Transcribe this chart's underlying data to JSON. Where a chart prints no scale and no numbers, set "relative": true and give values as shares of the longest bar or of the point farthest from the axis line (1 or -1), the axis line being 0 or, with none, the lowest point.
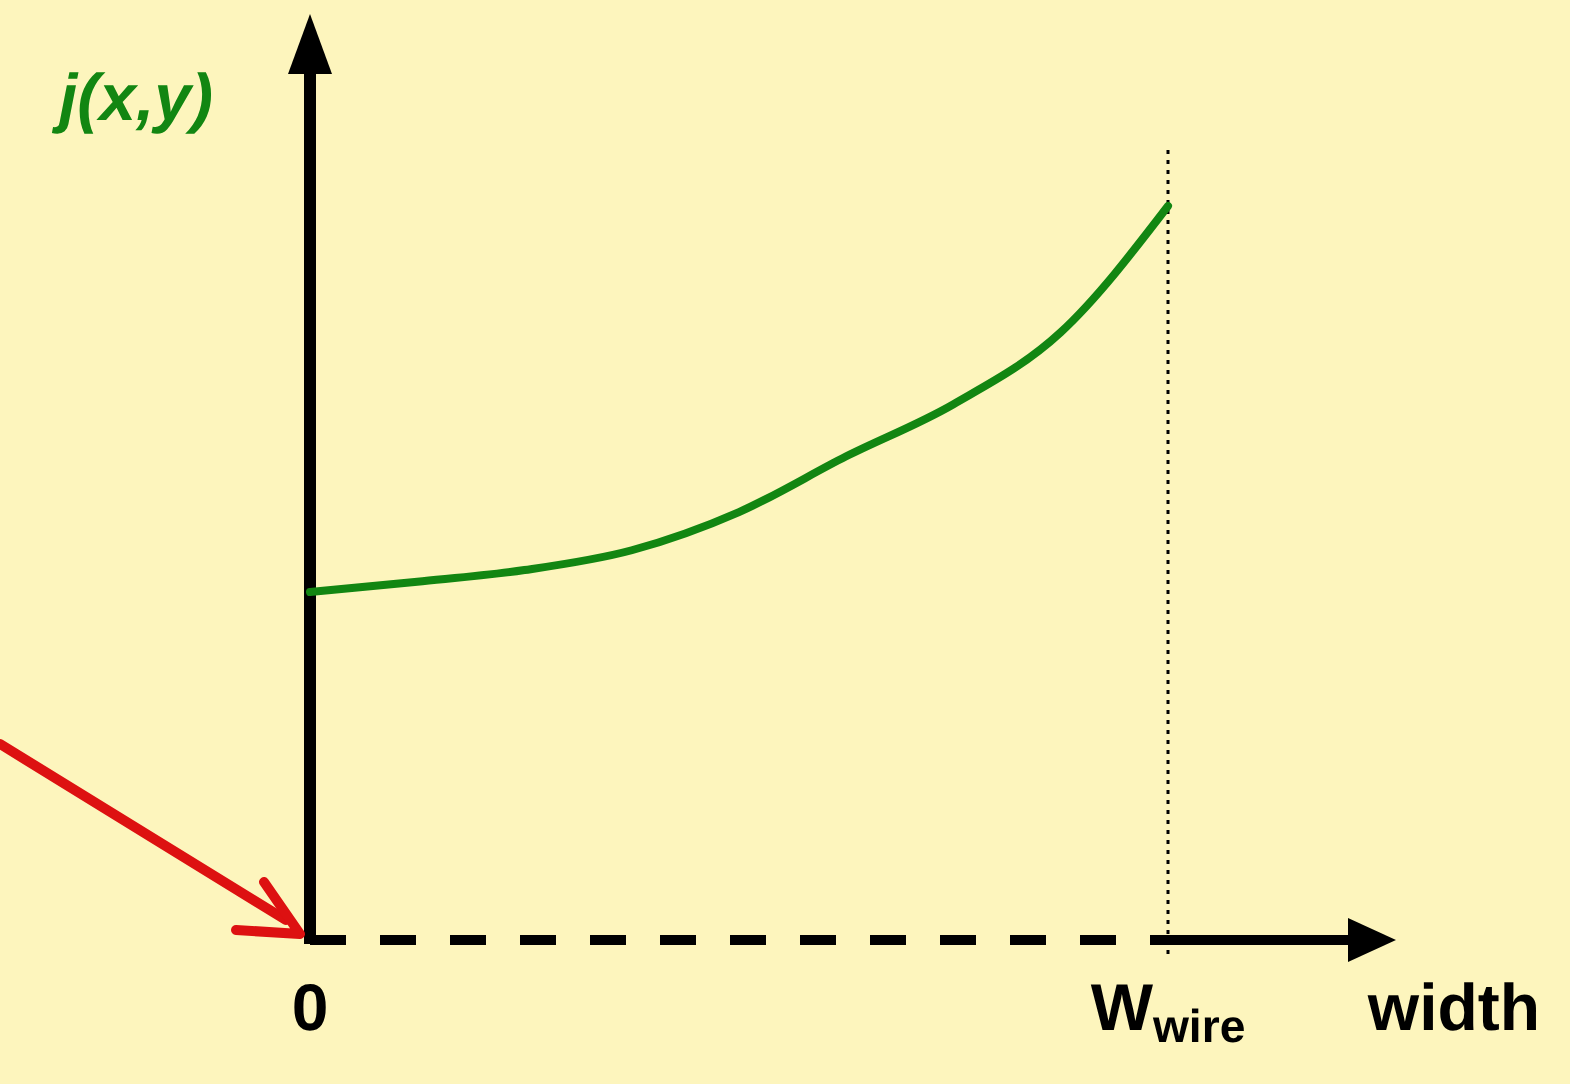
{
  "chart_data": {
    "type": "line",
    "relative": true,
    "xlabel": "width",
    "ylabel": "j(x,y)",
    "categories": [
      "0",
      null,
      null,
      null,
      null,
      null,
      null,
      null,
      "W$_{wire}$"
    ],
    "series": [
      {
        "color": "#128612",
        "values": [
          0.474,
          0.488,
          0.504,
          0.531,
          0.583,
          0.659,
          0.73,
          0.828,
          1
        ]
      }
    ],
    "ref_lines": [
      {
        "axis": "x",
        "value": "W$_{wire}$",
        "line_style": "dotted"
      }
    ],
    "line_style": "solid",
    "marker": "none",
    "grid": false,
    "legend": false
  }
}
